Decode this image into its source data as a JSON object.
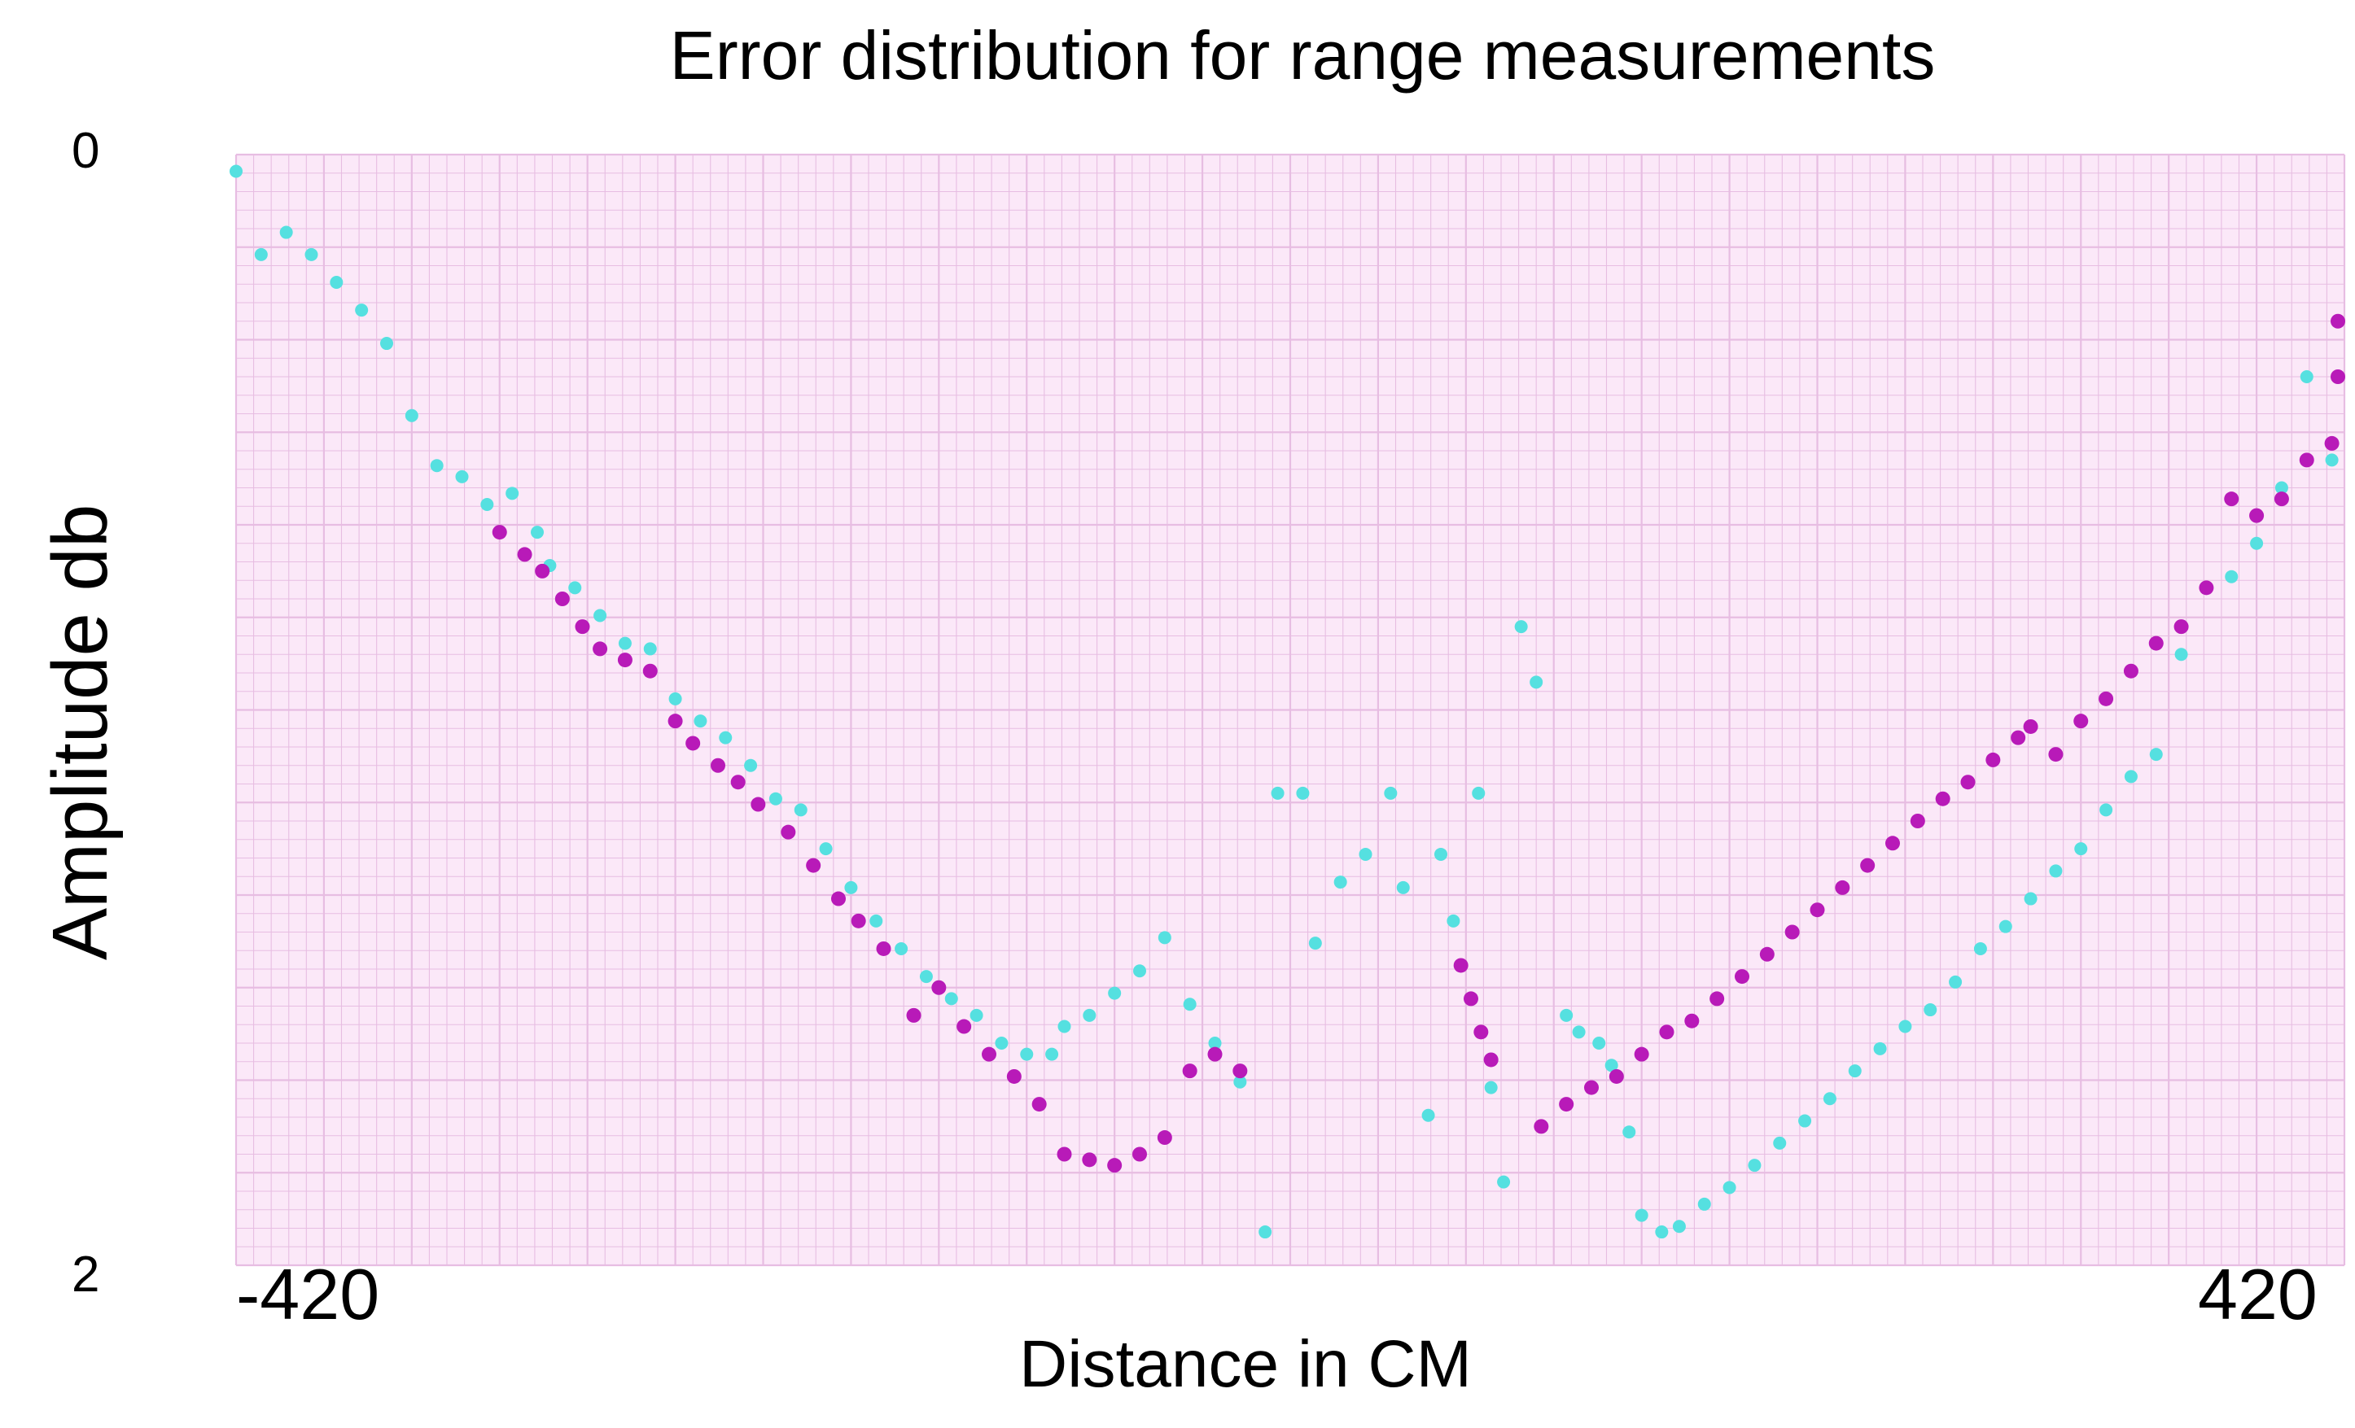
{
  "chart_data": {
    "type": "scatter",
    "title": "Error distribution for range measurements",
    "xlabel": "Distance in CM",
    "ylabel": "Amplitude db",
    "xlim": [
      -420,
      420
    ],
    "ylim": [
      0,
      2
    ],
    "x_ticks": [
      "-420",
      "420"
    ],
    "y_ticks": [
      "0",
      "2"
    ],
    "y_inverted": true,
    "grid": true,
    "background": "#fbe8f8",
    "grid_color": "#e7bde2",
    "series": [
      {
        "color": "#55e0e0",
        "points": [
          [
            -420,
            0.03
          ],
          [
            -410,
            0.18
          ],
          [
            -400,
            0.14
          ],
          [
            -390,
            0.18
          ],
          [
            -380,
            0.23
          ],
          [
            -370,
            0.28
          ],
          [
            -360,
            0.34
          ],
          [
            -350,
            0.47
          ],
          [
            -340,
            0.56
          ],
          [
            -330,
            0.58
          ],
          [
            -320,
            0.63
          ],
          [
            -310,
            0.61
          ],
          [
            -300,
            0.68
          ],
          [
            -295,
            0.74
          ],
          [
            -285,
            0.78
          ],
          [
            -275,
            0.83
          ],
          [
            -265,
            0.88
          ],
          [
            -255,
            0.89
          ],
          [
            -245,
            0.98
          ],
          [
            -235,
            1.02
          ],
          [
            -225,
            1.05
          ],
          [
            -215,
            1.1
          ],
          [
            -205,
            1.16
          ],
          [
            -195,
            1.18
          ],
          [
            -185,
            1.25
          ],
          [
            -175,
            1.32
          ],
          [
            -165,
            1.38
          ],
          [
            -155,
            1.43
          ],
          [
            -145,
            1.48
          ],
          [
            -135,
            1.52
          ],
          [
            -125,
            1.55
          ],
          [
            -115,
            1.6
          ],
          [
            -105,
            1.62
          ],
          [
            -95,
            1.62
          ],
          [
            -90,
            1.57
          ],
          [
            -80,
            1.55
          ],
          [
            -70,
            1.51
          ],
          [
            -60,
            1.47
          ],
          [
            -50,
            1.41
          ],
          [
            -40,
            1.53
          ],
          [
            -30,
            1.6
          ],
          [
            -20,
            1.67
          ],
          [
            -10,
            1.94
          ],
          [
            -5,
            1.15
          ],
          [
            5,
            1.15
          ],
          [
            10,
            1.42
          ],
          [
            20,
            1.31
          ],
          [
            30,
            1.26
          ],
          [
            40,
            1.15
          ],
          [
            45,
            1.32
          ],
          [
            55,
            1.73
          ],
          [
            60,
            1.26
          ],
          [
            65,
            1.38
          ],
          [
            75,
            1.15
          ],
          [
            80,
            1.68
          ],
          [
            85,
            1.85
          ],
          [
            92,
            0.85
          ],
          [
            98,
            0.95
          ],
          [
            110,
            1.55
          ],
          [
            115,
            1.58
          ],
          [
            123,
            1.6
          ],
          [
            128,
            1.64
          ],
          [
            135,
            1.76
          ],
          [
            140,
            1.91
          ],
          [
            148,
            1.94
          ],
          [
            155,
            1.93
          ],
          [
            165,
            1.89
          ],
          [
            175,
            1.86
          ],
          [
            185,
            1.82
          ],
          [
            195,
            1.78
          ],
          [
            205,
            1.74
          ],
          [
            215,
            1.7
          ],
          [
            225,
            1.65
          ],
          [
            235,
            1.61
          ],
          [
            245,
            1.57
          ],
          [
            255,
            1.54
          ],
          [
            265,
            1.49
          ],
          [
            275,
            1.43
          ],
          [
            285,
            1.39
          ],
          [
            295,
            1.34
          ],
          [
            305,
            1.29
          ],
          [
            315,
            1.25
          ],
          [
            325,
            1.18
          ],
          [
            335,
            1.12
          ],
          [
            345,
            1.08
          ],
          [
            355,
            0.9
          ],
          [
            365,
            0.78
          ],
          [
            375,
            0.76
          ],
          [
            385,
            0.7
          ],
          [
            395,
            0.6
          ],
          [
            405,
            0.4
          ],
          [
            415,
            0.55
          ]
        ]
      },
      {
        "color": "#b81ab8",
        "points": [
          [
            -315,
            0.68
          ],
          [
            -305,
            0.72
          ],
          [
            -298,
            0.75
          ],
          [
            -290,
            0.8
          ],
          [
            -282,
            0.85
          ],
          [
            -275,
            0.89
          ],
          [
            -265,
            0.91
          ],
          [
            -255,
            0.93
          ],
          [
            -245,
            1.02
          ],
          [
            -238,
            1.06
          ],
          [
            -228,
            1.1
          ],
          [
            -220,
            1.13
          ],
          [
            -212,
            1.17
          ],
          [
            -200,
            1.22
          ],
          [
            -190,
            1.28
          ],
          [
            -180,
            1.34
          ],
          [
            -172,
            1.38
          ],
          [
            -162,
            1.43
          ],
          [
            -150,
            1.55
          ],
          [
            -140,
            1.5
          ],
          [
            -130,
            1.57
          ],
          [
            -120,
            1.62
          ],
          [
            -110,
            1.66
          ],
          [
            -100,
            1.71
          ],
          [
            -90,
            1.8
          ],
          [
            -80,
            1.81
          ],
          [
            -70,
            1.82
          ],
          [
            -60,
            1.8
          ],
          [
            -50,
            1.77
          ],
          [
            -40,
            1.65
          ],
          [
            -30,
            1.62
          ],
          [
            -20,
            1.65
          ],
          [
            68,
            1.46
          ],
          [
            72,
            1.52
          ],
          [
            76,
            1.58
          ],
          [
            80,
            1.63
          ],
          [
            100,
            1.75
          ],
          [
            110,
            1.71
          ],
          [
            120,
            1.68
          ],
          [
            130,
            1.66
          ],
          [
            140,
            1.62
          ],
          [
            150,
            1.58
          ],
          [
            160,
            1.56
          ],
          [
            170,
            1.52
          ],
          [
            180,
            1.48
          ],
          [
            190,
            1.44
          ],
          [
            200,
            1.4
          ],
          [
            210,
            1.36
          ],
          [
            220,
            1.32
          ],
          [
            230,
            1.28
          ],
          [
            240,
            1.24
          ],
          [
            250,
            1.2
          ],
          [
            260,
            1.16
          ],
          [
            270,
            1.13
          ],
          [
            280,
            1.09
          ],
          [
            290,
            1.05
          ],
          [
            295,
            1.03
          ],
          [
            305,
            1.08
          ],
          [
            315,
            1.02
          ],
          [
            325,
            0.98
          ],
          [
            335,
            0.93
          ],
          [
            345,
            0.88
          ],
          [
            355,
            0.85
          ],
          [
            365,
            0.78
          ],
          [
            375,
            0.62
          ],
          [
            385,
            0.65
          ],
          [
            395,
            0.62
          ],
          [
            405,
            0.55
          ],
          [
            415,
            0.52
          ],
          [
            425,
            0.4
          ],
          [
            435,
            0.3
          ]
        ]
      }
    ]
  }
}
